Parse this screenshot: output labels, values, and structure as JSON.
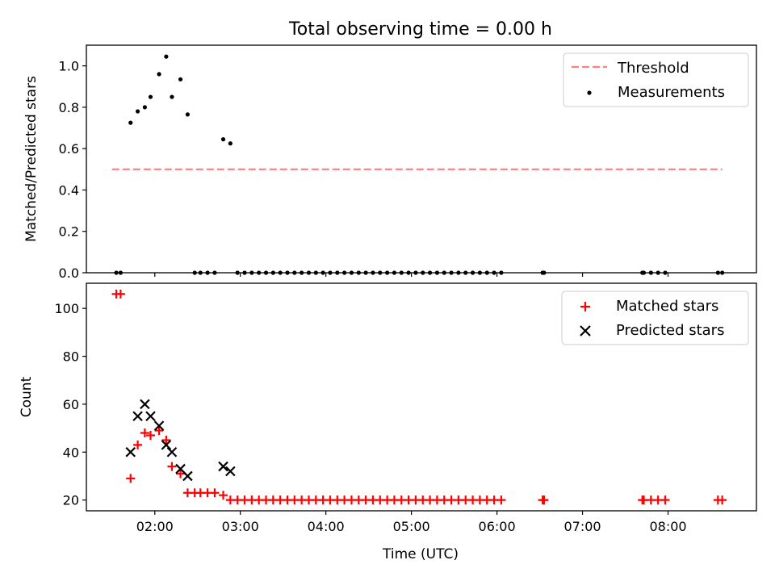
{
  "figure": {
    "title": "Total observing time = 0.00 h"
  },
  "chart_data": [
    {
      "type": "scatter",
      "ylabel": "Matched/Predicted stars",
      "xlabel": "",
      "xlim": [
        "01:12",
        "09:02"
      ],
      "ylim": [
        0,
        1.1
      ],
      "yticks": [
        "0.0",
        "0.2",
        "0.4",
        "0.6",
        "0.8",
        "1.0"
      ],
      "xticks": [
        "02:00",
        "03:00",
        "04:00",
        "05:00",
        "06:00",
        "07:00",
        "08:00"
      ],
      "legend_position": "top-right",
      "series": [
        {
          "name": "Threshold",
          "kind": "line",
          "style": "dashed",
          "color": "#ff7f7f",
          "points": [
            [
              "01:30",
              0.5
            ],
            [
              "08:38",
              0.5
            ]
          ]
        },
        {
          "name": "Measurements",
          "kind": "scatter",
          "marker": "dot",
          "color": "#000000",
          "points": [
            [
              "01:33",
              0.0
            ],
            [
              "01:36",
              0.0
            ],
            [
              "01:43",
              0.725
            ],
            [
              "01:48",
              0.78
            ],
            [
              "01:53",
              0.8
            ],
            [
              "01:57",
              0.85
            ],
            [
              "02:03",
              0.96
            ],
            [
              "02:08",
              1.045
            ],
            [
              "02:12",
              0.85
            ],
            [
              "02:18",
              0.935
            ],
            [
              "02:23",
              0.765
            ],
            [
              "02:28",
              0.0
            ],
            [
              "02:32",
              0.0
            ],
            [
              "02:37",
              0.0
            ],
            [
              "02:42",
              0.0
            ],
            [
              "02:48",
              0.645
            ],
            [
              "02:53",
              0.625
            ],
            [
              "02:58",
              0.0
            ],
            [
              "03:03",
              0.0
            ],
            [
              "03:08",
              0.0
            ],
            [
              "03:13",
              0.0
            ],
            [
              "03:18",
              0.0
            ],
            [
              "03:23",
              0.0
            ],
            [
              "03:28",
              0.0
            ],
            [
              "03:33",
              0.0
            ],
            [
              "03:38",
              0.0
            ],
            [
              "03:43",
              0.0
            ],
            [
              "03:48",
              0.0
            ],
            [
              "03:53",
              0.0
            ],
            [
              "03:58",
              0.0
            ],
            [
              "04:03",
              0.0
            ],
            [
              "04:08",
              0.0
            ],
            [
              "04:13",
              0.0
            ],
            [
              "04:18",
              0.0
            ],
            [
              "04:23",
              0.0
            ],
            [
              "04:28",
              0.0
            ],
            [
              "04:33",
              0.0
            ],
            [
              "04:38",
              0.0
            ],
            [
              "04:43",
              0.0
            ],
            [
              "04:48",
              0.0
            ],
            [
              "04:53",
              0.0
            ],
            [
              "04:58",
              0.0
            ],
            [
              "05:03",
              0.0
            ],
            [
              "05:08",
              0.0
            ],
            [
              "05:13",
              0.0
            ],
            [
              "05:18",
              0.0
            ],
            [
              "05:23",
              0.0
            ],
            [
              "05:28",
              0.0
            ],
            [
              "05:33",
              0.0
            ],
            [
              "05:38",
              0.0
            ],
            [
              "05:43",
              0.0
            ],
            [
              "05:48",
              0.0
            ],
            [
              "05:53",
              0.0
            ],
            [
              "05:58",
              0.0
            ],
            [
              "06:03",
              0.0
            ],
            [
              "06:32",
              0.0
            ],
            [
              "06:33",
              0.0
            ],
            [
              "07:42",
              0.0
            ],
            [
              "07:43",
              0.0
            ],
            [
              "07:48",
              0.0
            ],
            [
              "07:53",
              0.0
            ],
            [
              "07:58",
              0.0
            ],
            [
              "08:35",
              0.0
            ],
            [
              "08:38",
              0.0
            ]
          ]
        }
      ]
    },
    {
      "type": "scatter",
      "ylabel": "Count",
      "xlabel": "Time (UTC)",
      "xlim": [
        "01:12",
        "09:02"
      ],
      "ylim": [
        15.5,
        110.5
      ],
      "yticks": [
        "20",
        "40",
        "60",
        "80",
        "100"
      ],
      "xticks": [
        "02:00",
        "03:00",
        "04:00",
        "05:00",
        "06:00",
        "07:00",
        "08:00"
      ],
      "legend_position": "top-right",
      "series": [
        {
          "name": "Matched stars",
          "kind": "scatter",
          "marker": "plus",
          "color": "#ff0000",
          "points": [
            [
              "01:33",
              106
            ],
            [
              "01:36",
              106
            ],
            [
              "01:43",
              29
            ],
            [
              "01:48",
              43
            ],
            [
              "01:53",
              48
            ],
            [
              "01:57",
              47
            ],
            [
              "02:03",
              49
            ],
            [
              "02:08",
              45
            ],
            [
              "02:12",
              34
            ],
            [
              "02:18",
              31
            ],
            [
              "02:23",
              23
            ],
            [
              "02:28",
              23
            ],
            [
              "02:32",
              23
            ],
            [
              "02:37",
              23
            ],
            [
              "02:42",
              23
            ],
            [
              "02:48",
              22
            ],
            [
              "02:53",
              20
            ],
            [
              "02:58",
              20
            ],
            [
              "03:03",
              20
            ],
            [
              "03:08",
              20
            ],
            [
              "03:13",
              20
            ],
            [
              "03:18",
              20
            ],
            [
              "03:23",
              20
            ],
            [
              "03:28",
              20
            ],
            [
              "03:33",
              20
            ],
            [
              "03:38",
              20
            ],
            [
              "03:43",
              20
            ],
            [
              "03:48",
              20
            ],
            [
              "03:53",
              20
            ],
            [
              "03:58",
              20
            ],
            [
              "04:03",
              20
            ],
            [
              "04:08",
              20
            ],
            [
              "04:13",
              20
            ],
            [
              "04:18",
              20
            ],
            [
              "04:23",
              20
            ],
            [
              "04:28",
              20
            ],
            [
              "04:33",
              20
            ],
            [
              "04:38",
              20
            ],
            [
              "04:43",
              20
            ],
            [
              "04:48",
              20
            ],
            [
              "04:53",
              20
            ],
            [
              "04:58",
              20
            ],
            [
              "05:03",
              20
            ],
            [
              "05:08",
              20
            ],
            [
              "05:13",
              20
            ],
            [
              "05:18",
              20
            ],
            [
              "05:23",
              20
            ],
            [
              "05:28",
              20
            ],
            [
              "05:33",
              20
            ],
            [
              "05:38",
              20
            ],
            [
              "05:43",
              20
            ],
            [
              "05:48",
              20
            ],
            [
              "05:53",
              20
            ],
            [
              "05:58",
              20
            ],
            [
              "06:03",
              20
            ],
            [
              "06:32",
              20
            ],
            [
              "06:33",
              20
            ],
            [
              "07:42",
              20
            ],
            [
              "07:43",
              20
            ],
            [
              "07:48",
              20
            ],
            [
              "07:53",
              20
            ],
            [
              "07:58",
              20
            ],
            [
              "08:35",
              20
            ],
            [
              "08:38",
              20
            ]
          ]
        },
        {
          "name": "Predicted stars",
          "kind": "scatter",
          "marker": "x",
          "color": "#000000",
          "points": [
            [
              "01:43",
              40
            ],
            [
              "01:48",
              55
            ],
            [
              "01:53",
              60
            ],
            [
              "01:57",
              55
            ],
            [
              "02:03",
              51
            ],
            [
              "02:08",
              43
            ],
            [
              "02:12",
              40
            ],
            [
              "02:18",
              33
            ],
            [
              "02:23",
              30
            ],
            [
              "02:48",
              34
            ],
            [
              "02:53",
              32
            ]
          ]
        }
      ]
    }
  ]
}
